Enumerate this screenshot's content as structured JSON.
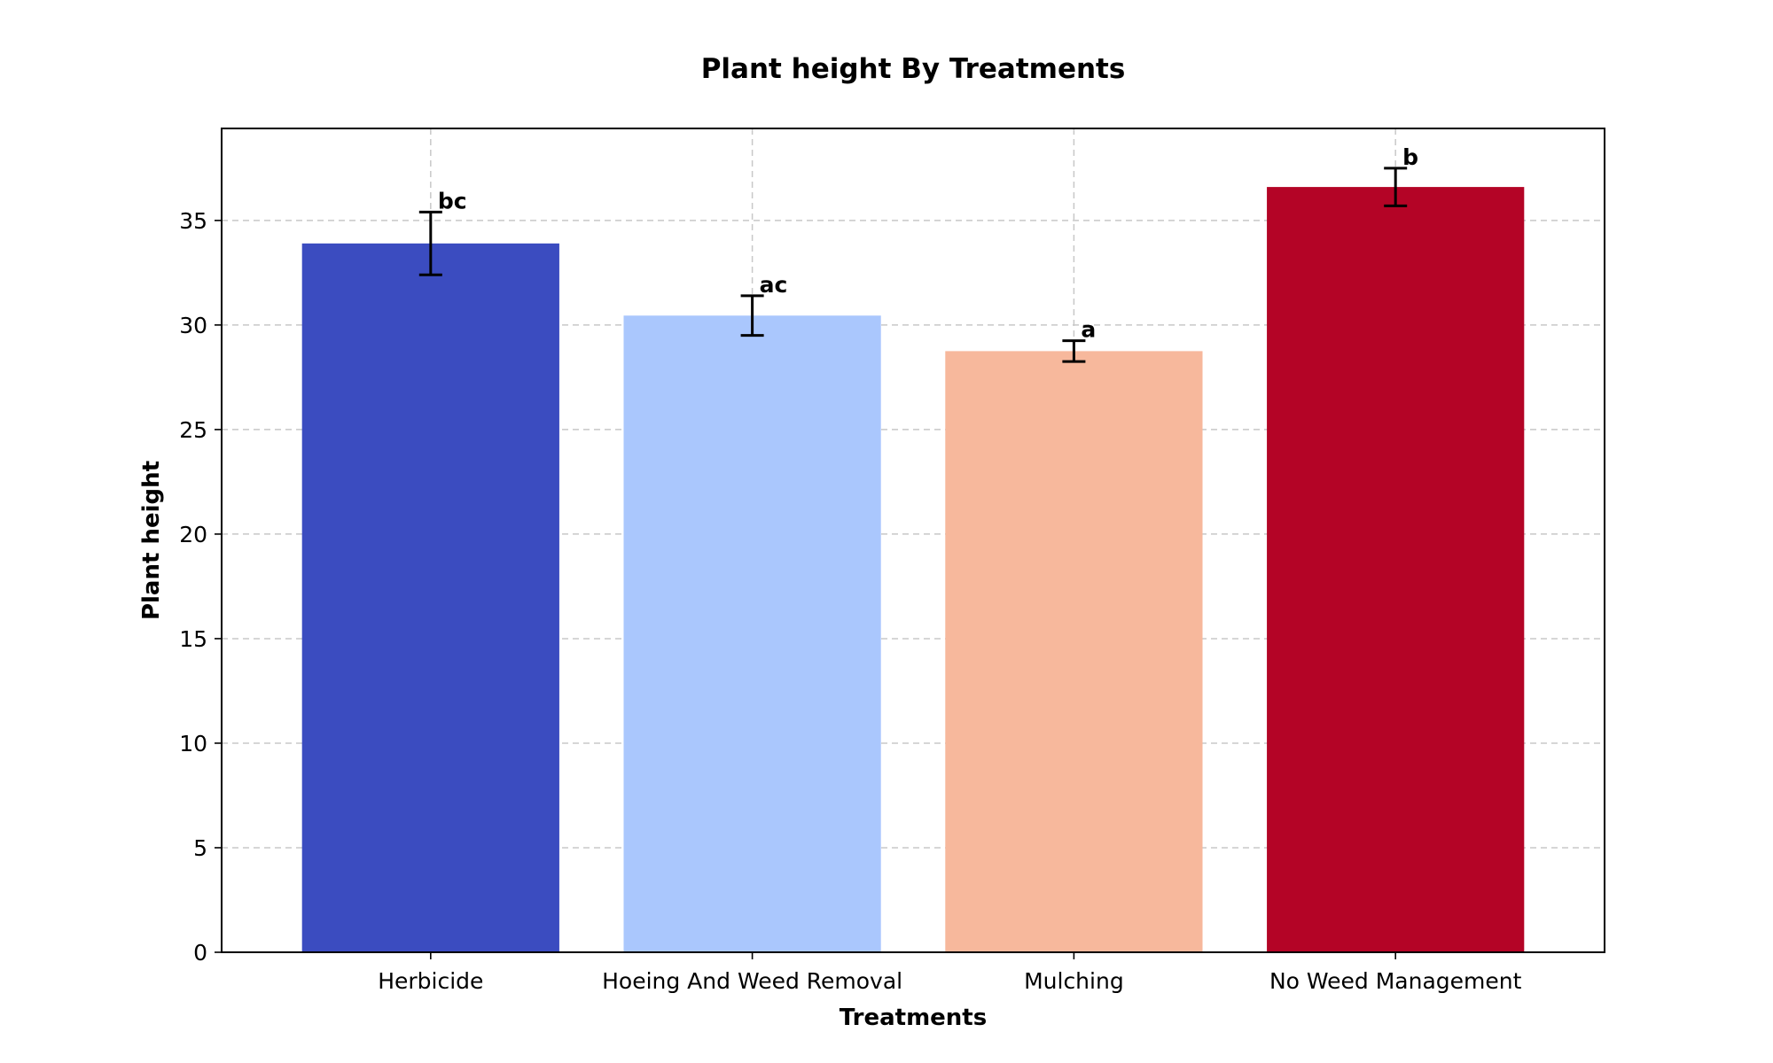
{
  "chart_data": {
    "type": "bar",
    "title": "Plant height By Treatments",
    "xlabel": "Treatments",
    "ylabel": "Plant height",
    "categories": [
      "Herbicide",
      "Hoeing And Weed Removal",
      "Mulching",
      "No Weed Management"
    ],
    "values": [
      33.9,
      30.45,
      28.75,
      36.6
    ],
    "errors": [
      1.5,
      0.95,
      0.5,
      0.9
    ],
    "significance_letters": [
      "bc",
      "ac",
      "a",
      "b"
    ],
    "colors": [
      "#3b4cc0",
      "#aac7fd",
      "#f7b89c",
      "#b40426"
    ],
    "ylim": [
      0,
      39.4
    ],
    "yticks": [
      0,
      5,
      10,
      15,
      20,
      25,
      30,
      35
    ],
    "grid": true,
    "legend": "none"
  }
}
